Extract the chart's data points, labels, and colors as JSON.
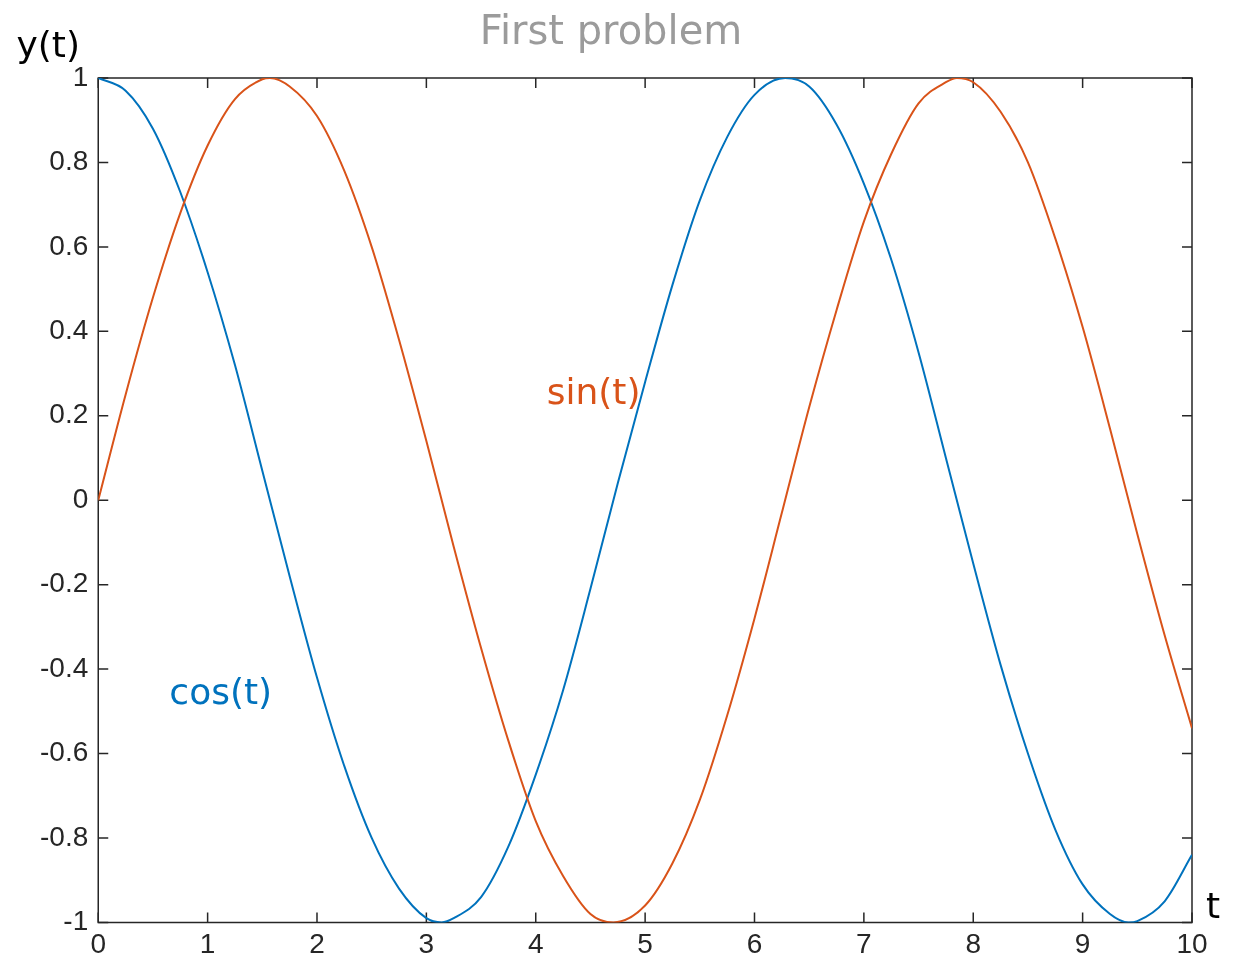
{
  "chart_data": {
    "type": "line",
    "title": "First problem",
    "xlabel": "t",
    "ylabel": "y(t)",
    "series": [
      {
        "name": "sin(t)",
        "color": "#d95319",
        "x": [
          0,
          0.25,
          0.5,
          0.75,
          1,
          1.25,
          1.5,
          1.57,
          1.75,
          2,
          2.25,
          2.5,
          2.75,
          3,
          3.25,
          3.5,
          3.75,
          4,
          4.25,
          4.5,
          4.71,
          5,
          5.25,
          5.5,
          5.75,
          6,
          6.25,
          6.5,
          6.75,
          7,
          7.25,
          7.5,
          7.75,
          7.85,
          8,
          8.25,
          8.5,
          8.75,
          9,
          9.25,
          9.5,
          9.75,
          10
        ],
        "values": [
          0,
          0.25,
          0.48,
          0.68,
          0.84,
          0.95,
          0.997,
          1,
          0.98,
          0.91,
          0.78,
          0.6,
          0.38,
          0.14,
          -0.11,
          -0.35,
          -0.57,
          -0.76,
          -0.89,
          -0.98,
          -1,
          -0.96,
          -0.86,
          -0.71,
          -0.51,
          -0.28,
          -0.03,
          0.22,
          0.45,
          0.66,
          0.82,
          0.94,
          0.99,
          1,
          0.99,
          0.92,
          0.8,
          0.62,
          0.41,
          0.17,
          -0.08,
          -0.32,
          -0.54
        ]
      },
      {
        "name": "cos(t)",
        "color": "#0072bd",
        "x": [
          0,
          0.25,
          0.5,
          0.75,
          1,
          1.25,
          1.5,
          1.75,
          2,
          2.25,
          2.5,
          2.75,
          3,
          3.14,
          3.25,
          3.5,
          3.75,
          4,
          4.25,
          4.5,
          4.75,
          5,
          5.25,
          5.5,
          5.75,
          6,
          6.28,
          6.5,
          6.75,
          7,
          7.25,
          7.5,
          7.75,
          8,
          8.25,
          8.5,
          8.75,
          9,
          9.25,
          9.42,
          9.5,
          9.75,
          10
        ],
        "values": [
          1,
          0.97,
          0.88,
          0.73,
          0.54,
          0.32,
          0.07,
          -0.18,
          -0.42,
          -0.63,
          -0.8,
          -0.92,
          -0.99,
          -1,
          -0.99,
          -0.94,
          -0.82,
          -0.65,
          -0.45,
          -0.21,
          0.04,
          0.28,
          0.51,
          0.71,
          0.86,
          0.96,
          1,
          0.98,
          0.89,
          0.75,
          0.57,
          0.35,
          0.1,
          -0.15,
          -0.39,
          -0.6,
          -0.78,
          -0.91,
          -0.98,
          -1,
          -0.997,
          -0.95,
          -0.84
        ]
      }
    ],
    "xlim": [
      0,
      10
    ],
    "xticks": [
      0,
      1,
      2,
      3,
      4,
      5,
      6,
      7,
      8,
      9,
      10
    ],
    "ylim": [
      -1,
      1
    ],
    "yticks": [
      -1,
      -0.8,
      -0.6,
      -0.4,
      -0.2,
      0,
      0.2,
      0.4,
      0.6,
      0.8,
      1
    ],
    "grid": false,
    "legend": false,
    "marker": "none",
    "line_style": "solid"
  }
}
